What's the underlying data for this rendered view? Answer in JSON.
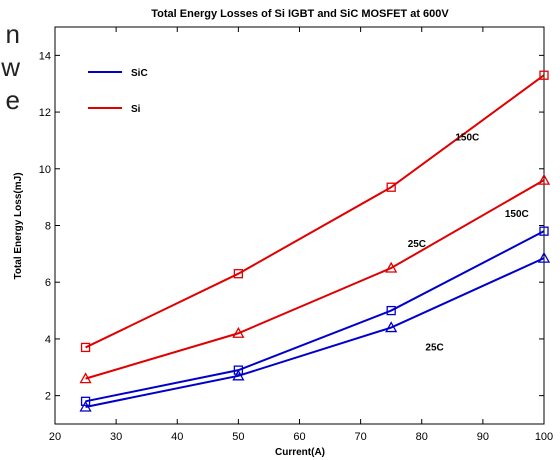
{
  "left_fragment": [
    "n",
    "w",
    "e"
  ],
  "chart_data": {
    "type": "line",
    "title": "Total Energy Losses of Si IGBT and SiC MOSFET at 600V",
    "xlabel": "Current(A)",
    "ylabel": "Total Energy Loss(mJ)",
    "xlim": [
      20,
      100
    ],
    "ylim": [
      1,
      15
    ],
    "xticks": [
      20,
      30,
      40,
      50,
      60,
      70,
      80,
      90,
      100
    ],
    "yticks": [
      2,
      4,
      6,
      8,
      10,
      12,
      14
    ],
    "grid": false,
    "legend_position": "top-left",
    "legend": [
      {
        "label": "SiC",
        "color": "#0000cc"
      },
      {
        "label": "Si",
        "color": "#e00000"
      }
    ],
    "series": [
      {
        "color": "#e00000",
        "marker": "square",
        "x": [
          25,
          50,
          75,
          100
        ],
        "values": [
          3.7,
          6.3,
          9.35,
          13.3
        ]
      },
      {
        "color": "#e00000",
        "marker": "triangle",
        "x": [
          25,
          50,
          75,
          100
        ],
        "values": [
          2.6,
          4.2,
          6.5,
          9.6
        ]
      },
      {
        "color": "#0000cc",
        "marker": "square",
        "x": [
          25,
          50,
          75,
          100
        ],
        "values": [
          1.8,
          2.9,
          5.0,
          7.8
        ]
      },
      {
        "color": "#0000cc",
        "marker": "triangle",
        "x": [
          25,
          50,
          75,
          100
        ],
        "values": [
          1.6,
          2.7,
          4.4,
          6.85
        ]
      }
    ],
    "annotations": [
      {
        "text": "150C",
        "x": 85.5,
        "y": 11.0
      },
      {
        "text": "25C",
        "x": 77.7,
        "y": 7.25
      },
      {
        "text": "150C",
        "x": 93.6,
        "y": 8.3
      },
      {
        "text": "25C",
        "x": 80.6,
        "y": 3.6
      }
    ]
  }
}
